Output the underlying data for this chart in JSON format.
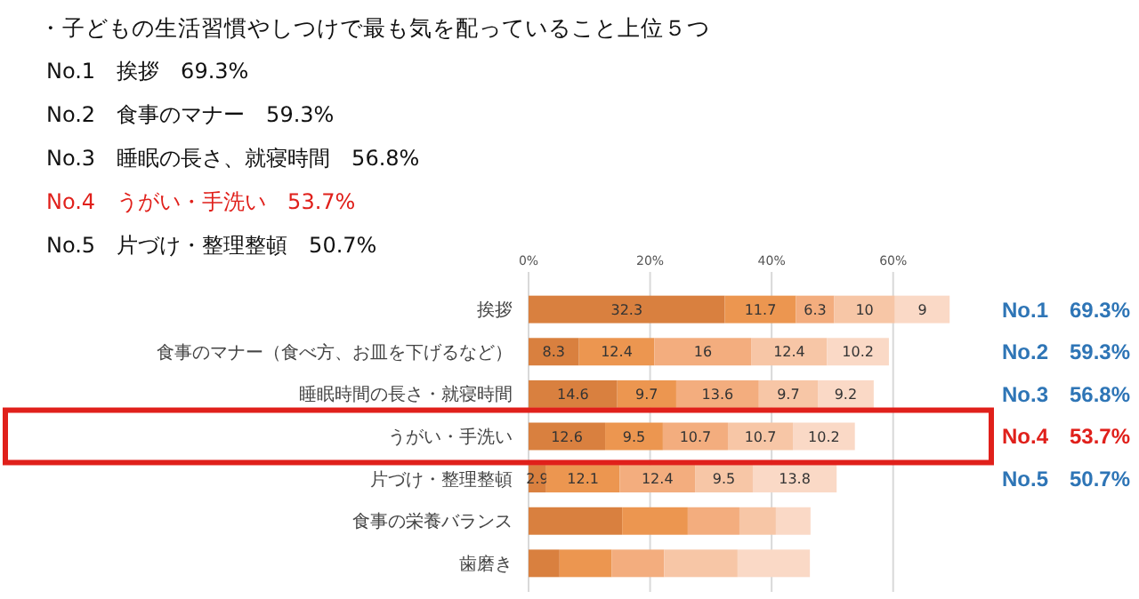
{
  "chart_data": {
    "type": "bar",
    "orientation": "horizontal",
    "stacked": true,
    "title": "・子どもの生活習慣やしつけで最も気を配っていること上位５つ",
    "categories": [
      "挨拶",
      "食事のマナー（食べ方、お皿を下げるなど）",
      "睡眠時間の長さ・就寝時間",
      "うがい・手洗い",
      "片づけ・整理整頓",
      "食事の栄養バランス",
      "歯磨き"
    ],
    "series": [
      {
        "color": "#d9803f",
        "values": [
          32.3,
          8.3,
          14.6,
          12.6,
          2.9,
          15.4,
          5.1
        ],
        "value_labels": [
          "32.3",
          "8.3",
          "14.6",
          "12.6",
          "2.9",
          null,
          null
        ]
      },
      {
        "color": "#ec9650",
        "values": [
          11.7,
          12.4,
          9.7,
          9.5,
          12.1,
          10.8,
          8.6
        ],
        "value_labels": [
          "11.7",
          "12.4",
          "9.7",
          "9.5",
          "12.1",
          null,
          null
        ]
      },
      {
        "color": "#f3ad7e",
        "values": [
          6.3,
          16,
          13.6,
          10.7,
          12.4,
          8.5,
          8.6
        ],
        "value_labels": [
          "6.3",
          "16",
          "13.6",
          "10.7",
          "12.4",
          null,
          null
        ]
      },
      {
        "color": "#f7c6a6",
        "values": [
          10,
          12.4,
          9.7,
          10.7,
          9.5,
          6.0,
          12.1
        ],
        "value_labels": [
          "10",
          "12.4",
          "9.7",
          "10.7",
          "9.5",
          null,
          null
        ]
      },
      {
        "color": "#fad9c6",
        "values": [
          9,
          10.2,
          9.2,
          10.2,
          13.8,
          5.7,
          11.9
        ],
        "value_labels": [
          "9",
          "10.2",
          "9.2",
          "10.2",
          "13.8",
          null,
          null
        ]
      }
    ],
    "xlim": [
      0,
      70
    ],
    "xticks": [
      {
        "value": 0,
        "label": "0%"
      },
      {
        "value": 20,
        "label": "20%"
      },
      {
        "value": 40,
        "label": "40%"
      },
      {
        "value": 60,
        "label": "60%"
      }
    ],
    "grid": "x",
    "annotations": [
      "No.1　挨拶　69.3%",
      "No.2　食事のマナー　59.3%",
      "No.3　睡眠の長さ、就寝時間　56.8%",
      "No.4　うがい・手洗い　53.7%",
      "No.5　片づけ・整理整頓　50.7%",
      "No.1　69.3%",
      "No.2　59.3%",
      "No.3　56.8%",
      "No.4　53.7%",
      "No.5　50.7%"
    ]
  }
}
